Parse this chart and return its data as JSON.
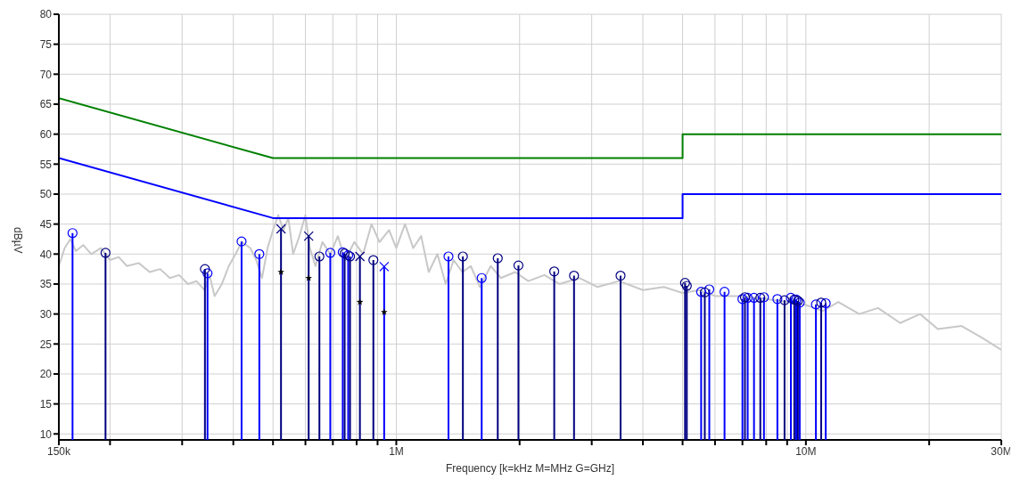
{
  "chart_data": {
    "type": "line",
    "xlabel": "Frequency [k=kHz M=MHz G=GHz]",
    "ylabel": "dBµV",
    "log": "x",
    "grid": true,
    "xlim": [
      150000,
      30000000
    ],
    "xticks": [
      {
        "value": 150000,
        "label": "150k"
      },
      {
        "value": 200000,
        "label": null
      },
      {
        "value": 300000,
        "label": null
      },
      {
        "value": 400000,
        "label": null
      },
      {
        "value": 500000,
        "label": null
      },
      {
        "value": 600000,
        "label": null
      },
      {
        "value": 700000,
        "label": null
      },
      {
        "value": 800000,
        "label": null
      },
      {
        "value": 900000,
        "label": null
      },
      {
        "value": 1000000,
        "label": "1M"
      },
      {
        "value": 2000000,
        "label": null
      },
      {
        "value": 3000000,
        "label": null
      },
      {
        "value": 4000000,
        "label": null
      },
      {
        "value": 5000000,
        "label": null
      },
      {
        "value": 6000000,
        "label": null
      },
      {
        "value": 7000000,
        "label": null
      },
      {
        "value": 8000000,
        "label": null
      },
      {
        "value": 9000000,
        "label": null
      },
      {
        "value": 10000000,
        "label": "10M"
      },
      {
        "value": 20000000,
        "label": null
      },
      {
        "value": 30000000,
        "label": "30M"
      }
    ],
    "ylim": [
      9,
      80
    ],
    "yticks": [
      10,
      15,
      20,
      25,
      30,
      35,
      40,
      45,
      50,
      55,
      60,
      65,
      70,
      75,
      80
    ],
    "series": [
      {
        "color": "#c8c8c8",
        "x": [
          150000,
          155000,
          160000,
          165000,
          172000,
          180000,
          190000,
          200000,
          210000,
          220000,
          235000,
          250000,
          265000,
          280000,
          295000,
          310000,
          325000,
          340000,
          350000,
          360000,
          375000,
          390000,
          405000,
          420000,
          440000,
          455000,
          470000,
          485000,
          500000,
          515000,
          530000,
          545000,
          560000,
          580000,
          600000,
          615000,
          635000,
          660000,
          690000,
          720000,
          750000,
          790000,
          830000,
          870000,
          910000,
          960000,
          1000000,
          1050000,
          1100000,
          1150000,
          1200000,
          1260000,
          1320000,
          1380000,
          1450000,
          1520000,
          1600000,
          1700000,
          1800000,
          1950000,
          2100000,
          2300000,
          2500000,
          2800000,
          3100000,
          3500000,
          4000000,
          4500000,
          5000000,
          5500000,
          6000000,
          7000000,
          8000000,
          9000000,
          10000000,
          11000000,
          12000000,
          13500000,
          15000000,
          17000000,
          19000000,
          21000000,
          24000000,
          27000000,
          30000000
        ],
        "values": [
          38,
          41,
          42.5,
          40.5,
          41.5,
          40,
          41,
          39,
          39.5,
          38,
          38.5,
          37,
          37.5,
          36,
          36.5,
          35,
          35.5,
          34,
          36.5,
          33,
          35,
          38,
          40,
          42,
          41,
          39,
          36,
          41,
          44,
          46.5,
          44,
          46,
          40,
          43,
          46.5,
          41,
          38,
          42,
          40,
          43,
          39,
          42,
          40,
          45,
          42,
          44,
          41,
          45,
          41,
          43,
          37,
          40,
          35,
          39,
          37,
          38,
          34.5,
          38,
          36,
          37,
          35.5,
          36.5,
          35,
          36,
          34.5,
          35.5,
          34,
          34.5,
          33.5,
          34,
          33,
          33,
          32.5,
          32,
          31.5,
          30.5,
          32,
          30,
          31,
          28.5,
          30,
          27.5,
          28,
          26,
          24
        ]
      },
      {
        "color": "#008000",
        "x": [
          150000,
          500000,
          5000000,
          5000000,
          30000000
        ],
        "values": [
          66,
          56,
          56,
          60,
          60
        ]
      },
      {
        "color": "#0000ff",
        "x": [
          150000,
          500000,
          5000000,
          5000000,
          30000000
        ],
        "values": [
          56,
          46,
          46,
          50,
          50
        ]
      },
      {
        "type": "lollipop",
        "color": "#0000ff",
        "marker": "circle",
        "x": [
          162000,
          346000,
          419000,
          463000,
          690000,
          740000,
          763000,
          1341000,
          1616000,
          5550000,
          5810000,
          6330000,
          7000000,
          7210000,
          7470000,
          7900000,
          8520000,
          9190000,
          9470000,
          9660000,
          10580000,
          11180000
        ],
        "values": [
          43.5,
          36.8,
          42.1,
          40.0,
          40.2,
          40.3,
          39.8,
          39.6,
          36.0,
          33.7,
          34.1,
          33.7,
          32.5,
          32.7,
          32.7,
          32.8,
          32.5,
          32.7,
          32.4,
          31.9,
          31.6,
          31.8
        ]
      },
      {
        "type": "lollipop",
        "color": "#000080",
        "marker": "circle",
        "x": [
          195000,
          341000,
          649000,
          748000,
          771000,
          879000,
          1454000,
          1769000,
          1987000,
          2430000,
          2716000,
          3528000,
          5070000,
          5120000,
          5665000,
          7100000,
          7740000,
          8870000,
          9370000,
          9560000,
          10900000
        ],
        "values": [
          40.2,
          37.5,
          39.6,
          40.1,
          39.6,
          39.0,
          39.6,
          39.3,
          38.1,
          37.1,
          36.4,
          36.4,
          35.2,
          34.7,
          33.6,
          32.8,
          32.7,
          32.3,
          32.4,
          32.2,
          31.9
        ]
      },
      {
        "type": "lollipop",
        "color": "#000080",
        "marker": "cross",
        "x": [
          523000,
          611000,
          815000
        ],
        "values": [
          44.2,
          43.0,
          39.6
        ]
      },
      {
        "type": "lollipop",
        "color": "#0000ff",
        "marker": "cross",
        "x": [
          934000
        ],
        "values": [
          37.9
        ]
      },
      {
        "type": "scatter",
        "color": "#000000",
        "marker": "star",
        "x": [
          523000,
          611000,
          815000,
          934000
        ],
        "values": [
          37.0,
          36.0,
          32.0,
          30.3
        ]
      }
    ]
  }
}
